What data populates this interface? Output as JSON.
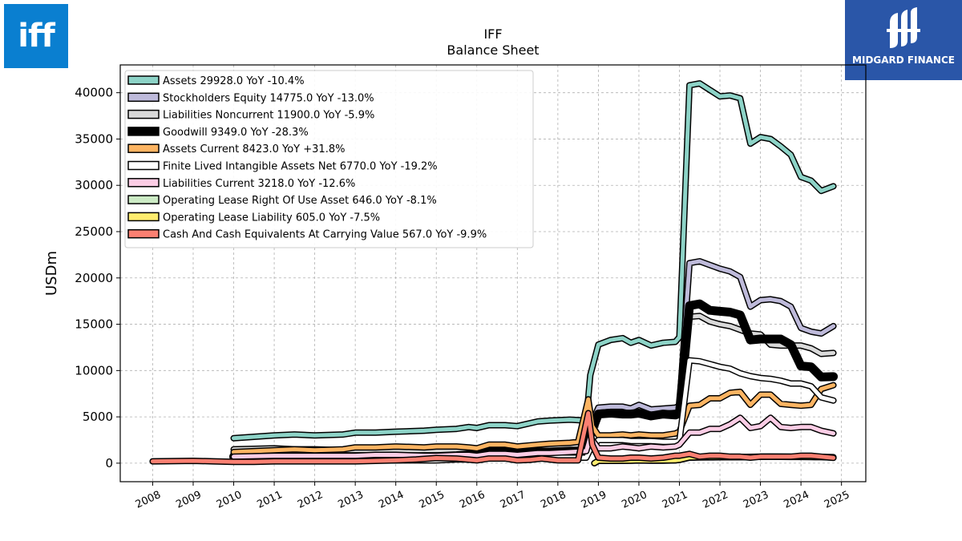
{
  "logos": {
    "left_text": "iff",
    "right_text": "MIDGARD FINANCE"
  },
  "chart_data": {
    "type": "line",
    "title": "IFF",
    "subtitle": "Balance  Sheet",
    "ylabel": "USDm",
    "xlabel": "",
    "xlim": [
      2007.2,
      2025.6
    ],
    "ylim": [
      -2000,
      43000
    ],
    "grid": true,
    "legend_position": "top-left",
    "xticks": [
      "2008",
      "2009",
      "2010",
      "2011",
      "2012",
      "2013",
      "2014",
      "2015",
      "2016",
      "2017",
      "2018",
      "2019",
      "2020",
      "2021",
      "2022",
      "2023",
      "2024",
      "2025"
    ],
    "yticks": [
      "0",
      "5000",
      "10000",
      "15000",
      "20000",
      "25000",
      "30000",
      "35000",
      "40000"
    ],
    "series": [
      {
        "name": "Assets  29928.0 YoY -10.4%",
        "color": "#8dd3c7",
        "width": 5,
        "x": [
          2010.0,
          2011.0,
          2011.5,
          2012.0,
          2012.7,
          2013.0,
          2013.5,
          2014.0,
          2014.7,
          2015.0,
          2015.5,
          2015.8,
          2016.0,
          2016.3,
          2016.7,
          2017.0,
          2017.5,
          2017.8,
          2018.3,
          2018.7,
          2018.8,
          2019.0,
          2019.3,
          2019.6,
          2019.8,
          2020.0,
          2020.3,
          2020.6,
          2020.9,
          2021.0,
          2021.25,
          2021.5,
          2021.75,
          2022.0,
          2022.25,
          2022.5,
          2022.75,
          2023.0,
          2023.25,
          2023.5,
          2023.75,
          2024.0,
          2024.25,
          2024.5,
          2024.8
        ],
        "y": [
          2700,
          3000,
          3100,
          3000,
          3100,
          3300,
          3300,
          3400,
          3500,
          3600,
          3700,
          3900,
          3800,
          4100,
          4100,
          4000,
          4500,
          4600,
          4700,
          4600,
          9500,
          12800,
          13300,
          13500,
          13000,
          13300,
          12700,
          13000,
          13100,
          13600,
          40800,
          41000,
          40300,
          39600,
          39700,
          39400,
          34500,
          35200,
          35000,
          34200,
          33300,
          30900,
          30500,
          29400,
          29900
        ]
      },
      {
        "name": "Stockholders Equity  14775.0 YoY -13.0%",
        "color": "#bebada",
        "width": 5,
        "x": [
          2010.0,
          2011.0,
          2011.5,
          2012.0,
          2012.7,
          2013.0,
          2013.5,
          2014.0,
          2014.7,
          2015.0,
          2015.5,
          2015.8,
          2016.0,
          2016.3,
          2016.7,
          2017.0,
          2017.5,
          2017.8,
          2018.3,
          2018.7,
          2018.8,
          2019.0,
          2019.3,
          2019.6,
          2019.8,
          2020.0,
          2020.3,
          2020.6,
          2020.9,
          2021.0,
          2021.25,
          2021.5,
          2021.75,
          2022.0,
          2022.25,
          2022.5,
          2022.75,
          2023.0,
          2023.25,
          2023.5,
          2023.75,
          2024.0,
          2024.25,
          2024.5,
          2024.8
        ],
        "y": [
          1000,
          1000,
          1100,
          1100,
          1200,
          1300,
          1400,
          1400,
          1300,
          1500,
          1500,
          1500,
          1300,
          1500,
          1500,
          1600,
          1800,
          1900,
          2000,
          2000,
          4000,
          6000,
          6100,
          6100,
          5900,
          6300,
          5800,
          5900,
          6000,
          6200,
          21600,
          21800,
          21400,
          21000,
          20700,
          20100,
          16900,
          17600,
          17700,
          17500,
          16900,
          14600,
          14200,
          14000,
          14800
        ]
      },
      {
        "name": "Liabilities Noncurrent  11900.0 YoY -5.9%",
        "color": "#d9d9d9",
        "width": 5,
        "x": [
          2010.0,
          2011.0,
          2011.5,
          2012.0,
          2012.7,
          2013.0,
          2013.5,
          2014.0,
          2014.7,
          2015.0,
          2015.5,
          2015.8,
          2016.0,
          2016.3,
          2016.7,
          2017.0,
          2017.5,
          2017.8,
          2018.3,
          2018.7,
          2018.8,
          2019.0,
          2019.3,
          2019.6,
          2019.8,
          2020.0,
          2020.3,
          2020.6,
          2020.9,
          2021.0,
          2021.25,
          2021.5,
          2021.75,
          2022.0,
          2022.25,
          2022.5,
          2022.75,
          2023.0,
          2023.25,
          2023.5,
          2023.75,
          2024.0,
          2024.25,
          2024.5,
          2024.8
        ],
        "y": [
          1500,
          1600,
          1500,
          1500,
          1400,
          1400,
          1400,
          1300,
          1400,
          1400,
          1300,
          1400,
          1500,
          1800,
          1800,
          1700,
          1700,
          1800,
          1800,
          1900,
          3500,
          5300,
          5400,
          5300,
          5300,
          5400,
          5100,
          5200,
          5300,
          5300,
          15800,
          15900,
          15300,
          15000,
          14800,
          14400,
          14000,
          13900,
          12800,
          12700,
          12700,
          12700,
          12400,
          11800,
          11900
        ]
      },
      {
        "name": "Goodwill  9349.0 YoY -28.3%",
        "color": "#000000",
        "width": 8,
        "x": [
          2010.0,
          2011.0,
          2011.5,
          2012.0,
          2012.7,
          2013.0,
          2013.5,
          2014.0,
          2014.7,
          2015.0,
          2015.5,
          2015.8,
          2016.0,
          2016.3,
          2016.7,
          2017.0,
          2017.5,
          2017.8,
          2018.3,
          2018.7,
          2018.8,
          2019.0,
          2019.3,
          2019.6,
          2019.8,
          2020.0,
          2020.3,
          2020.6,
          2020.9,
          2021.0,
          2021.25,
          2021.5,
          2021.75,
          2022.0,
          2022.25,
          2022.5,
          2022.75,
          2023.0,
          2023.25,
          2023.5,
          2023.75,
          2024.0,
          2024.25,
          2024.5,
          2024.8
        ],
        "y": [
          700,
          700,
          700,
          700,
          700,
          700,
          700,
          700,
          700,
          700,
          800,
          900,
          900,
          1200,
          1200,
          1200,
          1200,
          1200,
          1300,
          1300,
          3000,
          5300,
          5400,
          5300,
          5300,
          5400,
          5100,
          5300,
          5200,
          5400,
          17000,
          17200,
          16500,
          16400,
          16300,
          16000,
          13300,
          13400,
          13400,
          13400,
          12800,
          10500,
          10400,
          9300,
          9349
        ]
      },
      {
        "name": "Assets Current  8423.0 YoY +31.8%",
        "color": "#fdb462",
        "width": 5,
        "x": [
          2010.0,
          2011.0,
          2011.5,
          2012.0,
          2012.7,
          2013.0,
          2013.5,
          2014.0,
          2014.7,
          2015.0,
          2015.5,
          2015.8,
          2016.0,
          2016.3,
          2016.7,
          2017.0,
          2017.5,
          2017.8,
          2018.3,
          2018.5,
          2018.75,
          2018.85,
          2019.0,
          2019.3,
          2019.6,
          2019.8,
          2020.0,
          2020.3,
          2020.6,
          2020.9,
          2021.0,
          2021.25,
          2021.5,
          2021.75,
          2022.0,
          2022.25,
          2022.5,
          2022.75,
          2023.0,
          2023.25,
          2023.5,
          2023.75,
          2024.0,
          2024.25,
          2024.5,
          2024.8
        ],
        "y": [
          1200,
          1400,
          1500,
          1400,
          1500,
          1700,
          1700,
          1800,
          1700,
          1800,
          1800,
          1700,
          1600,
          2000,
          2000,
          1800,
          2000,
          2100,
          2200,
          2300,
          6900,
          4000,
          3000,
          3000,
          3100,
          3000,
          3100,
          3000,
          3000,
          3200,
          3400,
          6200,
          6300,
          7000,
          7000,
          7600,
          7700,
          6300,
          7400,
          7400,
          6400,
          6300,
          6200,
          6300,
          8000,
          8423
        ]
      },
      {
        "name": "Finite Lived Intangible Assets Net  6770.0 YoY -19.2%",
        "color": "#ffffff",
        "width": 5,
        "x": [
          2010.0,
          2011.0,
          2011.5,
          2012.0,
          2012.7,
          2013.0,
          2013.5,
          2014.0,
          2014.7,
          2015.0,
          2015.5,
          2015.8,
          2016.0,
          2016.3,
          2016.7,
          2017.0,
          2017.5,
          2017.8,
          2018.3,
          2018.7,
          2018.8,
          2019.0,
          2019.3,
          2019.6,
          2019.8,
          2020.0,
          2020.3,
          2020.6,
          2020.9,
          2021.0,
          2021.25,
          2021.5,
          2021.75,
          2022.0,
          2022.25,
          2022.5,
          2022.75,
          2023.0,
          2023.25,
          2023.5,
          2023.75,
          2024.0,
          2024.25,
          2024.5,
          2024.8
        ],
        "y": [
          300,
          300,
          300,
          300,
          300,
          300,
          300,
          300,
          300,
          300,
          400,
          400,
          400,
          600,
          600,
          600,
          600,
          600,
          600,
          600,
          1500,
          2500,
          2500,
          2500,
          2400,
          2400,
          2400,
          2300,
          2300,
          2400,
          11100,
          11000,
          10700,
          10400,
          10200,
          9700,
          9400,
          9200,
          9100,
          8900,
          8600,
          8600,
          8300,
          7100,
          6770
        ]
      },
      {
        "name": "Liabilities Current  3218.0 YoY -12.6%",
        "color": "#fccde5",
        "width": 5,
        "x": [
          2010.0,
          2011.0,
          2011.5,
          2012.0,
          2012.7,
          2013.0,
          2013.5,
          2014.0,
          2014.7,
          2015.0,
          2015.5,
          2015.8,
          2016.0,
          2016.3,
          2016.7,
          2017.0,
          2017.5,
          2017.8,
          2018.3,
          2018.7,
          2018.8,
          2019.0,
          2019.3,
          2019.6,
          2019.8,
          2020.0,
          2020.3,
          2020.6,
          2020.9,
          2021.0,
          2021.25,
          2021.5,
          2021.75,
          2022.0,
          2022.25,
          2022.5,
          2022.75,
          2023.0,
          2023.25,
          2023.5,
          2023.75,
          2024.0,
          2024.25,
          2024.5,
          2024.8
        ],
        "y": [
          700,
          800,
          800,
          800,
          800,
          800,
          900,
          900,
          800,
          800,
          900,
          900,
          800,
          1000,
          1000,
          900,
          1100,
          1100,
          1200,
          1300,
          2800,
          1600,
          1600,
          1800,
          1700,
          1600,
          1800,
          1700,
          1800,
          2000,
          3300,
          3300,
          3700,
          3700,
          4200,
          4900,
          3800,
          4000,
          4900,
          3900,
          3800,
          3900,
          3900,
          3500,
          3218
        ]
      },
      {
        "name": "Operating Lease Right Of Use Asset  646.0 YoY -8.1%",
        "color": "#ccebc5",
        "width": 5,
        "x": [
          2018.9,
          2019.0,
          2019.3,
          2019.6,
          2019.8,
          2020.0,
          2020.3,
          2020.6,
          2020.9,
          2021.0,
          2021.25,
          2021.5,
          2021.75,
          2022.0,
          2022.25,
          2022.5,
          2022.75,
          2023.0,
          2023.25,
          2023.5,
          2023.75,
          2024.0,
          2024.25,
          2024.5,
          2024.8
        ],
        "y": [
          0,
          250,
          250,
          260,
          270,
          290,
          280,
          280,
          300,
          350,
          600,
          620,
          630,
          640,
          640,
          650,
          680,
          700,
          710,
          700,
          690,
          700,
          690,
          680,
          646
        ]
      },
      {
        "name": "Operating Lease Liability  605.0 YoY -7.5%",
        "color": "#ffed6f",
        "width": 5,
        "x": [
          2018.9,
          2019.0,
          2019.3,
          2019.6,
          2019.8,
          2020.0,
          2020.3,
          2020.6,
          2020.9,
          2021.0,
          2021.25,
          2021.5,
          2021.75,
          2022.0,
          2022.25,
          2022.5,
          2022.75,
          2023.0,
          2023.25,
          2023.5,
          2023.75,
          2024.0,
          2024.25,
          2024.5,
          2024.8
        ],
        "y": [
          0,
          260,
          260,
          270,
          280,
          300,
          290,
          290,
          310,
          360,
          620,
          640,
          650,
          660,
          650,
          650,
          670,
          680,
          690,
          680,
          670,
          670,
          660,
          650,
          605
        ]
      },
      {
        "name": "Cash And Cash Equivalents At Carrying Value  567.0 YoY -9.9%",
        "color": "#fb8072",
        "width": 5,
        "x": [
          2008.0,
          2009.0,
          2009.5,
          2010.0,
          2010.5,
          2011.0,
          2011.5,
          2012.0,
          2012.5,
          2013.0,
          2013.5,
          2014.0,
          2014.5,
          2015.0,
          2015.5,
          2016.0,
          2016.3,
          2016.7,
          2017.0,
          2017.3,
          2017.6,
          2018.0,
          2018.5,
          2018.75,
          2018.85,
          2019.0,
          2019.3,
          2019.6,
          2019.8,
          2020.0,
          2020.3,
          2020.6,
          2020.9,
          2021.0,
          2021.25,
          2021.5,
          2021.75,
          2022.0,
          2022.25,
          2022.5,
          2022.75,
          2023.0,
          2023.25,
          2023.5,
          2023.75,
          2024.0,
          2024.25,
          2024.5,
          2024.8
        ],
        "y": [
          200,
          250,
          200,
          150,
          150,
          200,
          200,
          200,
          200,
          200,
          250,
          300,
          400,
          550,
          500,
          300,
          500,
          500,
          300,
          350,
          500,
          300,
          300,
          5400,
          2000,
          600,
          500,
          500,
          600,
          600,
          500,
          600,
          800,
          800,
          1000,
          700,
          800,
          800,
          700,
          700,
          600,
          700,
          700,
          700,
          700,
          800,
          800,
          700,
          567
        ]
      }
    ]
  }
}
